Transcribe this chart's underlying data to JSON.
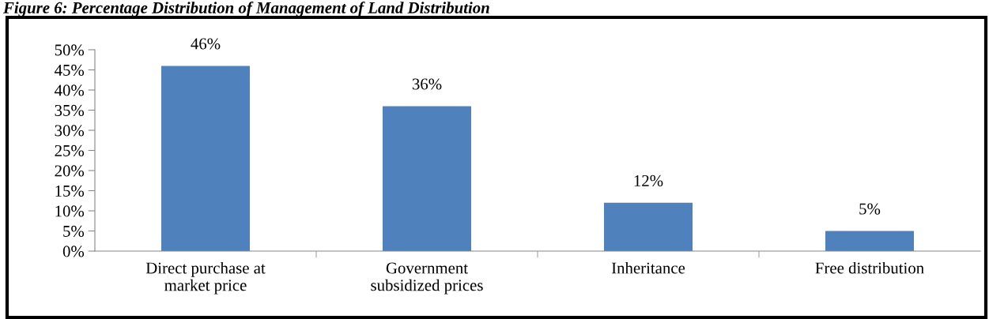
{
  "chart_data": {
    "type": "bar",
    "title": "Figure 6: Percentage Distribution of Management of Land Distribution",
    "categories": [
      "Direct purchase at\nmarket price",
      "Government\nsubsidized prices",
      "Inheritance",
      "Free distribution"
    ],
    "values": [
      46,
      36,
      12,
      5
    ],
    "color": "#4f81bd",
    "value_labels": [
      "46%",
      "36%",
      "12%",
      "5%"
    ],
    "ylim": [
      0,
      50
    ],
    "yticks": [
      {
        "value": 0,
        "label": "0%"
      },
      {
        "value": 5,
        "label": "5%"
      },
      {
        "value": 10,
        "label": "10%"
      },
      {
        "value": 15,
        "label": "15%"
      },
      {
        "value": 20,
        "label": "20%"
      },
      {
        "value": 25,
        "label": "25%"
      },
      {
        "value": 30,
        "label": "30%"
      },
      {
        "value": 35,
        "label": "35%"
      },
      {
        "value": 40,
        "label": "40%"
      },
      {
        "value": 45,
        "label": "45%"
      },
      {
        "value": 50,
        "label": "50%"
      }
    ],
    "grid": false
  }
}
